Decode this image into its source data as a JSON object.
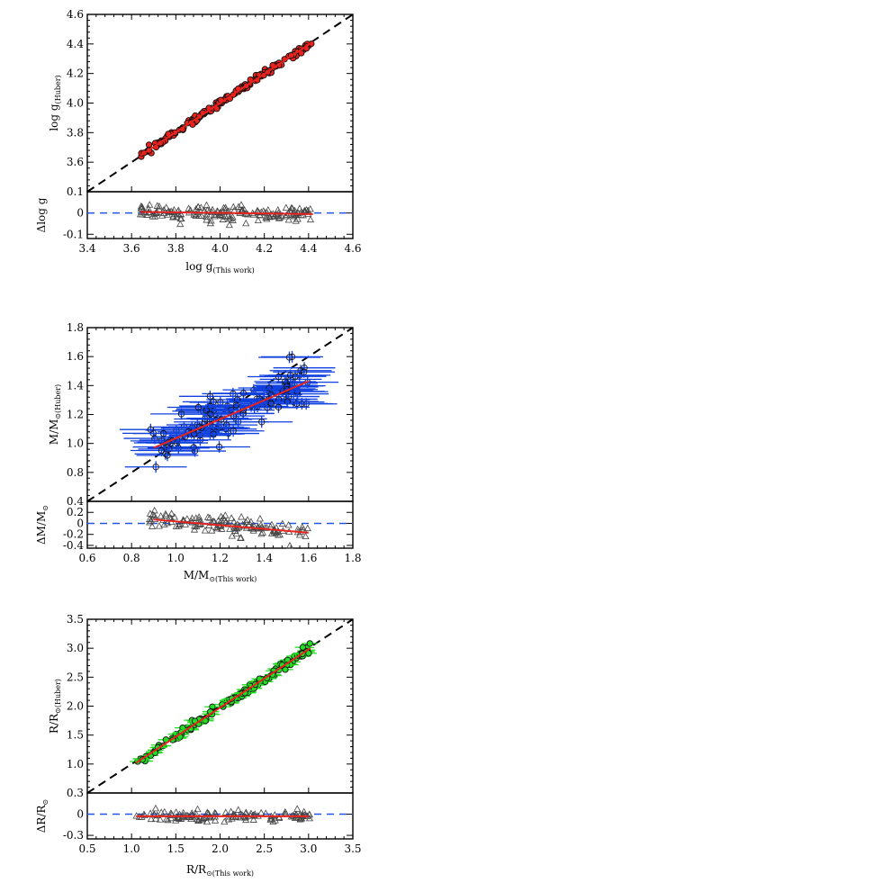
{
  "colors": {
    "identity_line": "#000000",
    "fit_line": "#e8231e",
    "zero_line": "#2255ee",
    "logg_fill": "#e8231e",
    "mass_err": "#1040e0",
    "radius_err": "#22dd22",
    "radius_fill": "#22dd22",
    "residual_marker": "#444444"
  },
  "chart_data": [
    {
      "id": "logg",
      "type": "scatter",
      "ylabel": "log g",
      "ylabel_sub": "(Huber)",
      "xlabel": "log g",
      "xlabel_sub": "(This work)",
      "res_label": "Δlog g",
      "xlim": [
        3.4,
        4.6
      ],
      "ylim": [
        3.4,
        4.6
      ],
      "xticks": [
        "3.4",
        "3.6",
        "3.8",
        "4.0",
        "4.2",
        "4.4",
        "4.6"
      ],
      "yticks": [
        "3.6",
        "3.8",
        "4.0",
        "4.2",
        "4.4",
        "4.6"
      ],
      "res_ylim": [
        -0.12,
        0.1
      ],
      "res_yticks": [
        "-0.1",
        "0",
        "0.1"
      ],
      "res_ytick_values": [
        -0.1,
        0,
        0.1
      ],
      "x_range": [
        3.64,
        4.42
      ],
      "n_points": 170,
      "err_x": 0.012,
      "err_y": 0.012,
      "point_scatter": 0.012,
      "res_scatter": 0.025,
      "fit_main": [
        [
          3.64,
          3.645
        ],
        [
          4.42,
          4.415
        ]
      ],
      "fit_res": [
        [
          3.64,
          0.005
        ],
        [
          4.42,
          -0.005
        ]
      ],
      "marker_fill": "logg_fill",
      "err_color": "logg_fill"
    },
    {
      "id": "mass",
      "type": "scatter",
      "ylabel": "M/M",
      "ylabel_sub": "⊙(Huber)",
      "xlabel": "M/M",
      "xlabel_sub": "⊙(This work)",
      "res_label": "ΔM/M",
      "res_label_sub": "⊙",
      "xlim": [
        0.6,
        1.8
      ],
      "ylim": [
        0.6,
        1.8
      ],
      "xticks": [
        "0.6",
        "0.8",
        "1.0",
        "1.2",
        "1.4",
        "1.6",
        "1.8"
      ],
      "yticks": [
        "0.8",
        "1.0",
        "1.2",
        "1.4",
        "1.6",
        "1.8"
      ],
      "res_ylim": [
        -0.45,
        0.4
      ],
      "res_yticks": [
        "-0.4",
        "-0.2",
        "0",
        "0.2",
        "0.4"
      ],
      "res_ytick_values": [
        -0.4,
        -0.2,
        0,
        0.2,
        0.4
      ],
      "x_range": [
        0.88,
        1.6
      ],
      "n_points": 130,
      "err_x": 0.14,
      "err_y": 0.04,
      "point_scatter": 0.08,
      "res_scatter": 0.1,
      "fit_main": [
        [
          0.9,
          0.97
        ],
        [
          1.6,
          1.43
        ]
      ],
      "fit_res": [
        [
          0.9,
          0.07
        ],
        [
          1.6,
          -0.17
        ]
      ],
      "marker_fill": "none",
      "err_color": "mass_err"
    },
    {
      "id": "radius",
      "type": "scatter",
      "ylabel": "R/R",
      "ylabel_sub": "⊙(Huber)",
      "xlabel": "R/R",
      "xlabel_sub": "⊙(This work)",
      "res_label": "ΔR/R",
      "res_label_sub": "⊙",
      "xlim": [
        0.5,
        3.5
      ],
      "ylim": [
        0.5,
        3.5
      ],
      "xticks": [
        "0.5",
        "1.0",
        "1.5",
        "2.0",
        "2.5",
        "3.0",
        "3.5"
      ],
      "yticks": [
        "1.0",
        "1.5",
        "2.0",
        "2.5",
        "3.0",
        "3.5"
      ],
      "res_ylim": [
        -0.35,
        0.3
      ],
      "res_yticks": [
        "-0.3",
        "0",
        "0.3"
      ],
      "res_ytick_values": [
        -0.3,
        0,
        0.3
      ],
      "x_range": [
        1.05,
        3.02
      ],
      "n_points": 130,
      "err_x": 0.09,
      "err_y": 0.02,
      "point_scatter": 0.04,
      "res_scatter": 0.05,
      "fit_main": [
        [
          1.05,
          1.02
        ],
        [
          3.02,
          3.0
        ]
      ],
      "fit_res": [
        [
          1.05,
          -0.03
        ],
        [
          3.0,
          -0.03
        ]
      ],
      "marker_fill": "radius_fill",
      "err_color": "radius_err"
    }
  ]
}
